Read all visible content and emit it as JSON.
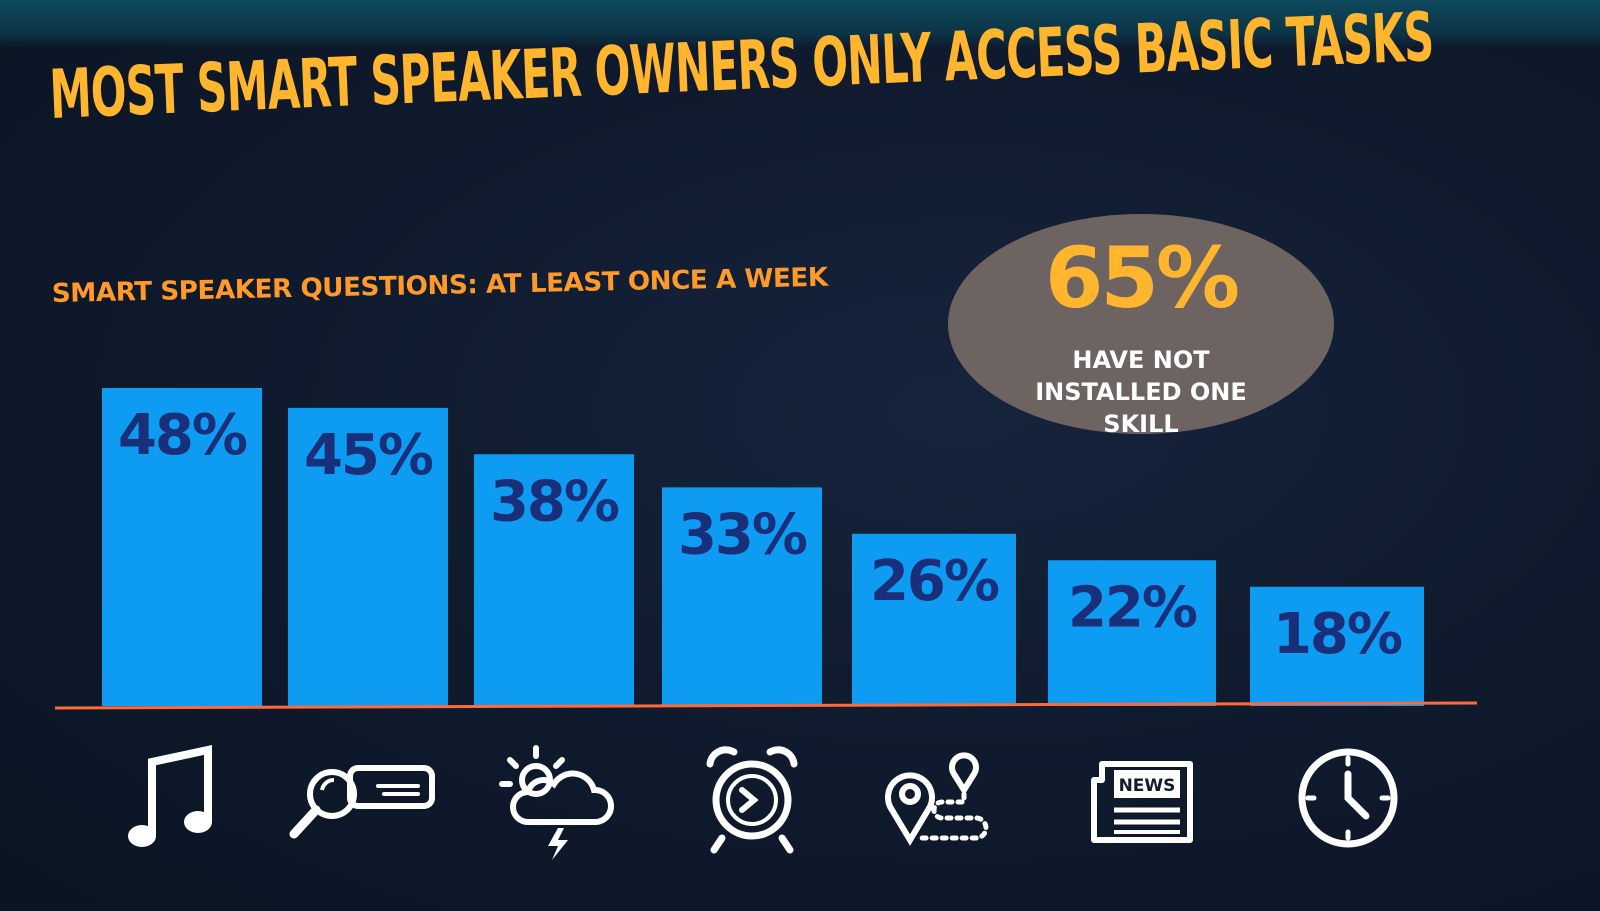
{
  "title": "MOST SMART SPEAKER OWNERS ONLY ACCESS BASIC TASKS",
  "colors": {
    "background": "#101b2f",
    "title": "#ffb52e",
    "subtitle": "#ff9a2a",
    "bar": "#0e9bf2",
    "bar_label": "#1a2f7a",
    "baseline": "#ff6a3a",
    "callout_bg": "#6d6461",
    "icon": "#ffffff"
  },
  "callout": {
    "value": "65%",
    "text": "HAVE NOT INSTALLED ONE SKILL"
  },
  "icons": [
    "music-note-icon",
    "search-icon",
    "weather-icon",
    "alarm-clock-icon",
    "map-route-icon",
    "news-icon",
    "clock-icon"
  ],
  "icon_text": {
    "news": "NEWS"
  },
  "chart_data": {
    "type": "bar",
    "title": "SMART SPEAKER QUESTIONS: AT LEAST ONCE A WEEK",
    "categories": [
      "Music",
      "Search",
      "Weather",
      "Alarm",
      "Directions",
      "News",
      "Time"
    ],
    "values": [
      48,
      45,
      38,
      33,
      26,
      22,
      18
    ],
    "value_labels": [
      "48%",
      "45%",
      "38%",
      "33%",
      "26%",
      "22%",
      "18%"
    ],
    "xlabel": "",
    "ylabel": "",
    "ylim": [
      0,
      48
    ],
    "grid": false,
    "legend": "none"
  }
}
